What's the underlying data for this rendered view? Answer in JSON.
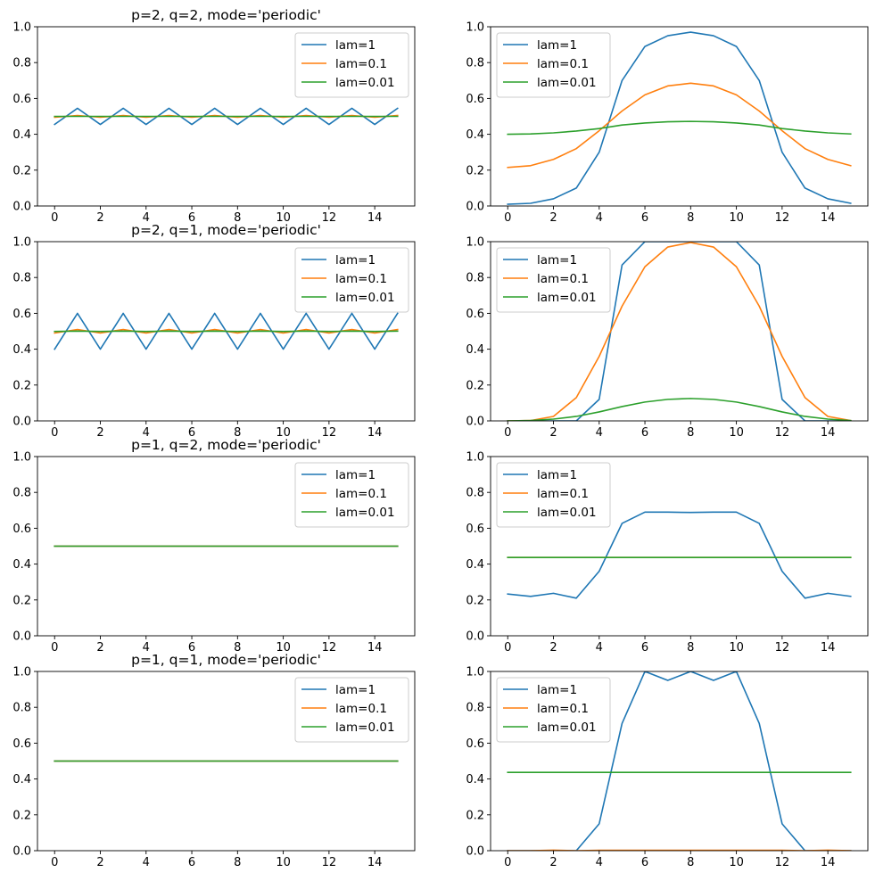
{
  "chart_data": [
    {
      "type": "line",
      "title": "p=2, q=2, mode='periodic'",
      "xlabel": "",
      "ylabel": "",
      "xlim": [
        -0.75,
        15.75
      ],
      "ylim": [
        0,
        1
      ],
      "x_ticks": [
        0,
        2,
        4,
        6,
        8,
        10,
        12,
        14
      ],
      "y_ticks": [
        0.0,
        0.2,
        0.4,
        0.6,
        0.8,
        1.0
      ],
      "legend_position": "upper right",
      "x": [
        0,
        1,
        2,
        3,
        4,
        5,
        6,
        7,
        8,
        9,
        10,
        11,
        12,
        13,
        14,
        15
      ],
      "series": [
        {
          "name": "lam=1",
          "color": "#1f77b4",
          "values": [
            0.455,
            0.545,
            0.455,
            0.545,
            0.455,
            0.545,
            0.455,
            0.545,
            0.455,
            0.545,
            0.455,
            0.545,
            0.455,
            0.545,
            0.455,
            0.545
          ]
        },
        {
          "name": "lam=0.1",
          "color": "#ff7f0e",
          "values": [
            0.495,
            0.505,
            0.495,
            0.505,
            0.495,
            0.505,
            0.495,
            0.505,
            0.495,
            0.505,
            0.495,
            0.505,
            0.495,
            0.505,
            0.495,
            0.505
          ]
        },
        {
          "name": "lam=0.01",
          "color": "#2ca02c",
          "values": [
            0.5,
            0.5,
            0.5,
            0.5,
            0.5,
            0.5,
            0.5,
            0.5,
            0.5,
            0.5,
            0.5,
            0.5,
            0.5,
            0.5,
            0.5,
            0.5
          ]
        }
      ]
    },
    {
      "type": "line",
      "title": "",
      "xlabel": "",
      "ylabel": "",
      "xlim": [
        -0.75,
        15.75
      ],
      "ylim": [
        0,
        1
      ],
      "x_ticks": [
        0,
        2,
        4,
        6,
        8,
        10,
        12,
        14
      ],
      "y_ticks": [
        0.0,
        0.2,
        0.4,
        0.6,
        0.8,
        1.0
      ],
      "legend_position": "upper left",
      "x": [
        0,
        1,
        2,
        3,
        4,
        5,
        6,
        7,
        8,
        9,
        10,
        11,
        12,
        13,
        14,
        15
      ],
      "series": [
        {
          "name": "lam=1",
          "color": "#1f77b4",
          "values": [
            0.01,
            0.015,
            0.04,
            0.1,
            0.3,
            0.7,
            0.89,
            0.95,
            0.97,
            0.95,
            0.89,
            0.7,
            0.3,
            0.1,
            0.04,
            0.015
          ]
        },
        {
          "name": "lam=0.1",
          "color": "#ff7f0e",
          "values": [
            0.215,
            0.225,
            0.26,
            0.32,
            0.42,
            0.53,
            0.62,
            0.67,
            0.685,
            0.67,
            0.62,
            0.53,
            0.42,
            0.32,
            0.26,
            0.225
          ]
        },
        {
          "name": "lam=0.01",
          "color": "#2ca02c",
          "values": [
            0.4,
            0.402,
            0.408,
            0.418,
            0.432,
            0.452,
            0.463,
            0.47,
            0.472,
            0.47,
            0.463,
            0.452,
            0.432,
            0.418,
            0.408,
            0.402
          ]
        }
      ]
    },
    {
      "type": "line",
      "title": "p=2, q=1, mode='periodic'",
      "xlabel": "",
      "ylabel": "",
      "xlim": [
        -0.75,
        15.75
      ],
      "ylim": [
        0,
        1
      ],
      "x_ticks": [
        0,
        2,
        4,
        6,
        8,
        10,
        12,
        14
      ],
      "y_ticks": [
        0.0,
        0.2,
        0.4,
        0.6,
        0.8,
        1.0
      ],
      "legend_position": "upper right",
      "x": [
        0,
        1,
        2,
        3,
        4,
        5,
        6,
        7,
        8,
        9,
        10,
        11,
        12,
        13,
        14,
        15
      ],
      "series": [
        {
          "name": "lam=1",
          "color": "#1f77b4",
          "values": [
            0.4,
            0.6,
            0.4,
            0.6,
            0.4,
            0.6,
            0.4,
            0.6,
            0.4,
            0.6,
            0.4,
            0.6,
            0.4,
            0.6,
            0.4,
            0.6
          ]
        },
        {
          "name": "lam=0.1",
          "color": "#ff7f0e",
          "values": [
            0.49,
            0.51,
            0.49,
            0.51,
            0.49,
            0.51,
            0.49,
            0.51,
            0.49,
            0.51,
            0.49,
            0.51,
            0.49,
            0.51,
            0.49,
            0.51
          ]
        },
        {
          "name": "lam=0.01",
          "color": "#2ca02c",
          "values": [
            0.499,
            0.501,
            0.499,
            0.501,
            0.499,
            0.501,
            0.499,
            0.501,
            0.499,
            0.501,
            0.499,
            0.501,
            0.499,
            0.501,
            0.499,
            0.501
          ]
        }
      ]
    },
    {
      "type": "line",
      "title": "",
      "xlabel": "",
      "ylabel": "",
      "xlim": [
        -0.75,
        15.75
      ],
      "ylim": [
        0,
        1
      ],
      "x_ticks": [
        0,
        2,
        4,
        6,
        8,
        10,
        12,
        14
      ],
      "y_ticks": [
        0.0,
        0.2,
        0.4,
        0.6,
        0.8,
        1.0
      ],
      "legend_position": "upper left",
      "x": [
        0,
        1,
        2,
        3,
        4,
        5,
        6,
        7,
        8,
        9,
        10,
        11,
        12,
        13,
        14,
        15
      ],
      "series": [
        {
          "name": "lam=1",
          "color": "#1f77b4",
          "values": [
            0.0,
            0.0,
            0.0,
            0.0,
            0.12,
            0.87,
            1.0,
            1.0,
            1.0,
            1.0,
            1.0,
            0.87,
            0.12,
            0.0,
            0.0,
            0.0
          ]
        },
        {
          "name": "lam=0.1",
          "color": "#ff7f0e",
          "values": [
            0.0,
            0.002,
            0.025,
            0.13,
            0.36,
            0.64,
            0.86,
            0.97,
            0.995,
            0.97,
            0.86,
            0.64,
            0.36,
            0.13,
            0.025,
            0.002
          ]
        },
        {
          "name": "lam=0.01",
          "color": "#2ca02c",
          "values": [
            0.0,
            0.002,
            0.01,
            0.025,
            0.05,
            0.08,
            0.105,
            0.12,
            0.125,
            0.12,
            0.105,
            0.08,
            0.05,
            0.025,
            0.01,
            0.002
          ]
        }
      ]
    },
    {
      "type": "line",
      "title": "p=1, q=2, mode='periodic'",
      "xlabel": "",
      "ylabel": "",
      "xlim": [
        -0.75,
        15.75
      ],
      "ylim": [
        0,
        1
      ],
      "x_ticks": [
        0,
        2,
        4,
        6,
        8,
        10,
        12,
        14
      ],
      "y_ticks": [
        0.0,
        0.2,
        0.4,
        0.6,
        0.8,
        1.0
      ],
      "legend_position": "upper right",
      "x": [
        0,
        1,
        2,
        3,
        4,
        5,
        6,
        7,
        8,
        9,
        10,
        11,
        12,
        13,
        14,
        15
      ],
      "series": [
        {
          "name": "lam=1",
          "color": "#1f77b4",
          "values": [
            0.5,
            0.5,
            0.5,
            0.5,
            0.5,
            0.5,
            0.5,
            0.5,
            0.5,
            0.5,
            0.5,
            0.5,
            0.5,
            0.5,
            0.5,
            0.5
          ]
        },
        {
          "name": "lam=0.1",
          "color": "#ff7f0e",
          "values": [
            0.5,
            0.5,
            0.5,
            0.5,
            0.5,
            0.5,
            0.5,
            0.5,
            0.5,
            0.5,
            0.5,
            0.5,
            0.5,
            0.5,
            0.5,
            0.5
          ]
        },
        {
          "name": "lam=0.01",
          "color": "#2ca02c",
          "values": [
            0.5,
            0.5,
            0.5,
            0.5,
            0.5,
            0.5,
            0.5,
            0.5,
            0.5,
            0.5,
            0.5,
            0.5,
            0.5,
            0.5,
            0.5,
            0.5
          ]
        }
      ]
    },
    {
      "type": "line",
      "title": "",
      "xlabel": "",
      "ylabel": "",
      "xlim": [
        -0.75,
        15.75
      ],
      "ylim": [
        0,
        1
      ],
      "x_ticks": [
        0,
        2,
        4,
        6,
        8,
        10,
        12,
        14
      ],
      "y_ticks": [
        0.0,
        0.2,
        0.4,
        0.6,
        0.8,
        1.0
      ],
      "legend_position": "upper left",
      "x": [
        0,
        1,
        2,
        3,
        4,
        5,
        6,
        7,
        8,
        9,
        10,
        11,
        12,
        13,
        14,
        15
      ],
      "series": [
        {
          "name": "lam=1",
          "color": "#1f77b4",
          "values": [
            0.233,
            0.22,
            0.237,
            0.21,
            0.36,
            0.627,
            0.69,
            0.69,
            0.688,
            0.69,
            0.69,
            0.627,
            0.36,
            0.21,
            0.237,
            0.22
          ]
        },
        {
          "name": "lam=0.1",
          "color": "#ff7f0e",
          "values": [
            0.437,
            0.437,
            0.437,
            0.437,
            0.437,
            0.437,
            0.437,
            0.437,
            0.437,
            0.437,
            0.437,
            0.437,
            0.437,
            0.437,
            0.437,
            0.437
          ]
        },
        {
          "name": "lam=0.01",
          "color": "#2ca02c",
          "values": [
            0.437,
            0.437,
            0.437,
            0.437,
            0.437,
            0.437,
            0.437,
            0.437,
            0.437,
            0.437,
            0.437,
            0.437,
            0.437,
            0.437,
            0.437,
            0.437
          ]
        }
      ]
    },
    {
      "type": "line",
      "title": "p=1, q=1, mode='periodic'",
      "xlabel": "",
      "ylabel": "",
      "xlim": [
        -0.75,
        15.75
      ],
      "ylim": [
        0,
        1
      ],
      "x_ticks": [
        0,
        2,
        4,
        6,
        8,
        10,
        12,
        14
      ],
      "y_ticks": [
        0.0,
        0.2,
        0.4,
        0.6,
        0.8,
        1.0
      ],
      "legend_position": "upper right",
      "x": [
        0,
        1,
        2,
        3,
        4,
        5,
        6,
        7,
        8,
        9,
        10,
        11,
        12,
        13,
        14,
        15
      ],
      "series": [
        {
          "name": "lam=1",
          "color": "#1f77b4",
          "values": [
            0.5,
            0.5,
            0.5,
            0.5,
            0.5,
            0.5,
            0.5,
            0.5,
            0.5,
            0.5,
            0.5,
            0.5,
            0.5,
            0.5,
            0.5,
            0.5
          ]
        },
        {
          "name": "lam=0.1",
          "color": "#ff7f0e",
          "values": [
            0.5,
            0.5,
            0.5,
            0.5,
            0.5,
            0.5,
            0.5,
            0.5,
            0.5,
            0.5,
            0.5,
            0.5,
            0.5,
            0.5,
            0.5,
            0.5
          ]
        },
        {
          "name": "lam=0.01",
          "color": "#2ca02c",
          "values": [
            0.5,
            0.5,
            0.5,
            0.5,
            0.5,
            0.5,
            0.5,
            0.5,
            0.5,
            0.5,
            0.5,
            0.5,
            0.5,
            0.5,
            0.5,
            0.5
          ]
        }
      ]
    },
    {
      "type": "line",
      "title": "",
      "xlabel": "",
      "ylabel": "",
      "xlim": [
        -0.75,
        15.75
      ],
      "ylim": [
        0,
        1
      ],
      "x_ticks": [
        0,
        2,
        4,
        6,
        8,
        10,
        12,
        14
      ],
      "y_ticks": [
        0.0,
        0.2,
        0.4,
        0.6,
        0.8,
        1.0
      ],
      "legend_position": "upper left",
      "x": [
        0,
        1,
        2,
        3,
        4,
        5,
        6,
        7,
        8,
        9,
        10,
        11,
        12,
        13,
        14,
        15
      ],
      "series": [
        {
          "name": "lam=1",
          "color": "#1f77b4",
          "values": [
            0.0,
            0.0,
            0.0,
            0.0,
            0.15,
            0.71,
            1.0,
            0.95,
            1.0,
            0.95,
            1.0,
            0.71,
            0.15,
            0.0,
            0.0,
            0.0
          ]
        },
        {
          "name": "lam=0.1",
          "color": "#ff7f0e",
          "values": [
            0.0,
            0.0,
            0.003,
            0.0,
            0.002,
            0.002,
            0.002,
            0.002,
            0.002,
            0.002,
            0.002,
            0.002,
            0.002,
            0.0,
            0.003,
            0.0
          ]
        },
        {
          "name": "lam=0.01",
          "color": "#2ca02c",
          "values": [
            0.437,
            0.437,
            0.437,
            0.437,
            0.437,
            0.437,
            0.437,
            0.437,
            0.437,
            0.437,
            0.437,
            0.437,
            0.437,
            0.437,
            0.437,
            0.437
          ]
        }
      ]
    }
  ]
}
